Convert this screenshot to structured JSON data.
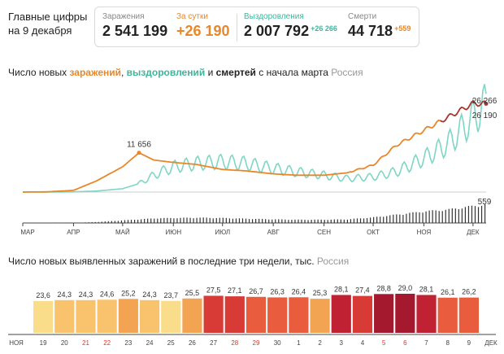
{
  "header": {
    "headline": "Главные цифры на 9 декабря",
    "stats": [
      {
        "label": "Заражения",
        "value": "2 541 199",
        "delta": ""
      },
      {
        "label": "За сутки",
        "value": "+26 190",
        "delta": ""
      },
      {
        "label": "Выздоровления",
        "value": "2 007 792",
        "delta": "+26 266"
      },
      {
        "label": "Смерти",
        "value": "44 718",
        "delta": "+559"
      }
    ]
  },
  "colors": {
    "cases": "#e8872a",
    "recoveries": "#7fd6c4",
    "recoveries_dark": "#3fb59a",
    "deaths": "#333333",
    "cases_late": "#a8352e"
  },
  "chart1": {
    "title_parts": [
      "Число новых ",
      "заражений",
      ", ",
      "выздоровлений",
      " и ",
      "смертей",
      " с начала марта "
    ],
    "region": "Россия",
    "peak_label": "11 656",
    "end_label_recoveries": "26 266",
    "end_label_cases": "26 190",
    "deaths_label": "559"
  },
  "chart2": {
    "title": "Число новых выявленных заражений в последние три недели, тыс.",
    "region": "Россия"
  },
  "chart_data": [
    {
      "type": "line",
      "title": "Число новых заражений, выздоровлений и смертей с начала марта",
      "x_ticks": [
        "МАР",
        "АПР",
        "МАЙ",
        "ИЮН",
        "ИЮЛ",
        "АВГ",
        "СЕН",
        "ОКТ",
        "НОЯ",
        "ДЕК"
      ],
      "x": [
        "Mar 1",
        "Mar 15",
        "Apr 1",
        "Apr 15",
        "May 1",
        "May 11",
        "May 20",
        "Jun 1",
        "Jun 15",
        "Jul 1",
        "Jul 15",
        "Aug 1",
        "Aug 15",
        "Sep 1",
        "Sep 15",
        "Oct 1",
        "Oct 15",
        "Nov 1",
        "Nov 15",
        "Dec 1",
        "Dec 9"
      ],
      "series": [
        {
          "name": "заражений",
          "values": [
            0,
            50,
            500,
            3300,
            7500,
            11656,
            9500,
            8800,
            8200,
            6700,
            6300,
            5400,
            5000,
            5000,
            5700,
            8000,
            13800,
            18300,
            22000,
            26300,
            26190
          ]
        },
        {
          "name": "выздоровлений",
          "values": [
            0,
            0,
            50,
            300,
            1000,
            2500,
            5000,
            7500,
            8500,
            9000,
            8500,
            7000,
            6000,
            5000,
            4000,
            4500,
            6000,
            10000,
            14000,
            22000,
            26266
          ]
        },
        {
          "name": "смертей",
          "values": [
            0,
            0,
            1,
            30,
            80,
            110,
            140,
            150,
            160,
            150,
            130,
            110,
            100,
            100,
            110,
            170,
            250,
            350,
            400,
            510,
            559
          ]
        }
      ],
      "annotations": [
        "11 656",
        "26 266",
        "26 190",
        "559"
      ]
    },
    {
      "type": "bar",
      "title": "Число новых выявленных заражений в последние три недели, тыс.",
      "categories": [
        "19",
        "20",
        "21",
        "22",
        "23",
        "24",
        "25",
        "26",
        "27",
        "28",
        "29",
        "30",
        "1",
        "2",
        "3",
        "4",
        "5",
        "6",
        "7",
        "8",
        "9"
      ],
      "values": [
        23.6,
        24.3,
        24.3,
        24.6,
        25.2,
        24.3,
        23.7,
        25.5,
        27.5,
        27.1,
        26.7,
        26.3,
        26.4,
        25.3,
        28.1,
        27.4,
        28.8,
        29.0,
        28.1,
        26.1,
        26.2
      ],
      "value_labels": [
        "23,6",
        "24,3",
        "24,3",
        "24,6",
        "25,2",
        "24,3",
        "23,7",
        "25,5",
        "27,5",
        "27,1",
        "26,7",
        "26,3",
        "26,4",
        "25,3",
        "28,1",
        "27,4",
        "28,8",
        "29,0",
        "28,1",
        "26,1",
        "26,2"
      ],
      "weekend": [
        "21",
        "22",
        "28",
        "29",
        "5",
        "6"
      ],
      "month_start": "НОЯ",
      "month_end": "ДЕК"
    }
  ]
}
